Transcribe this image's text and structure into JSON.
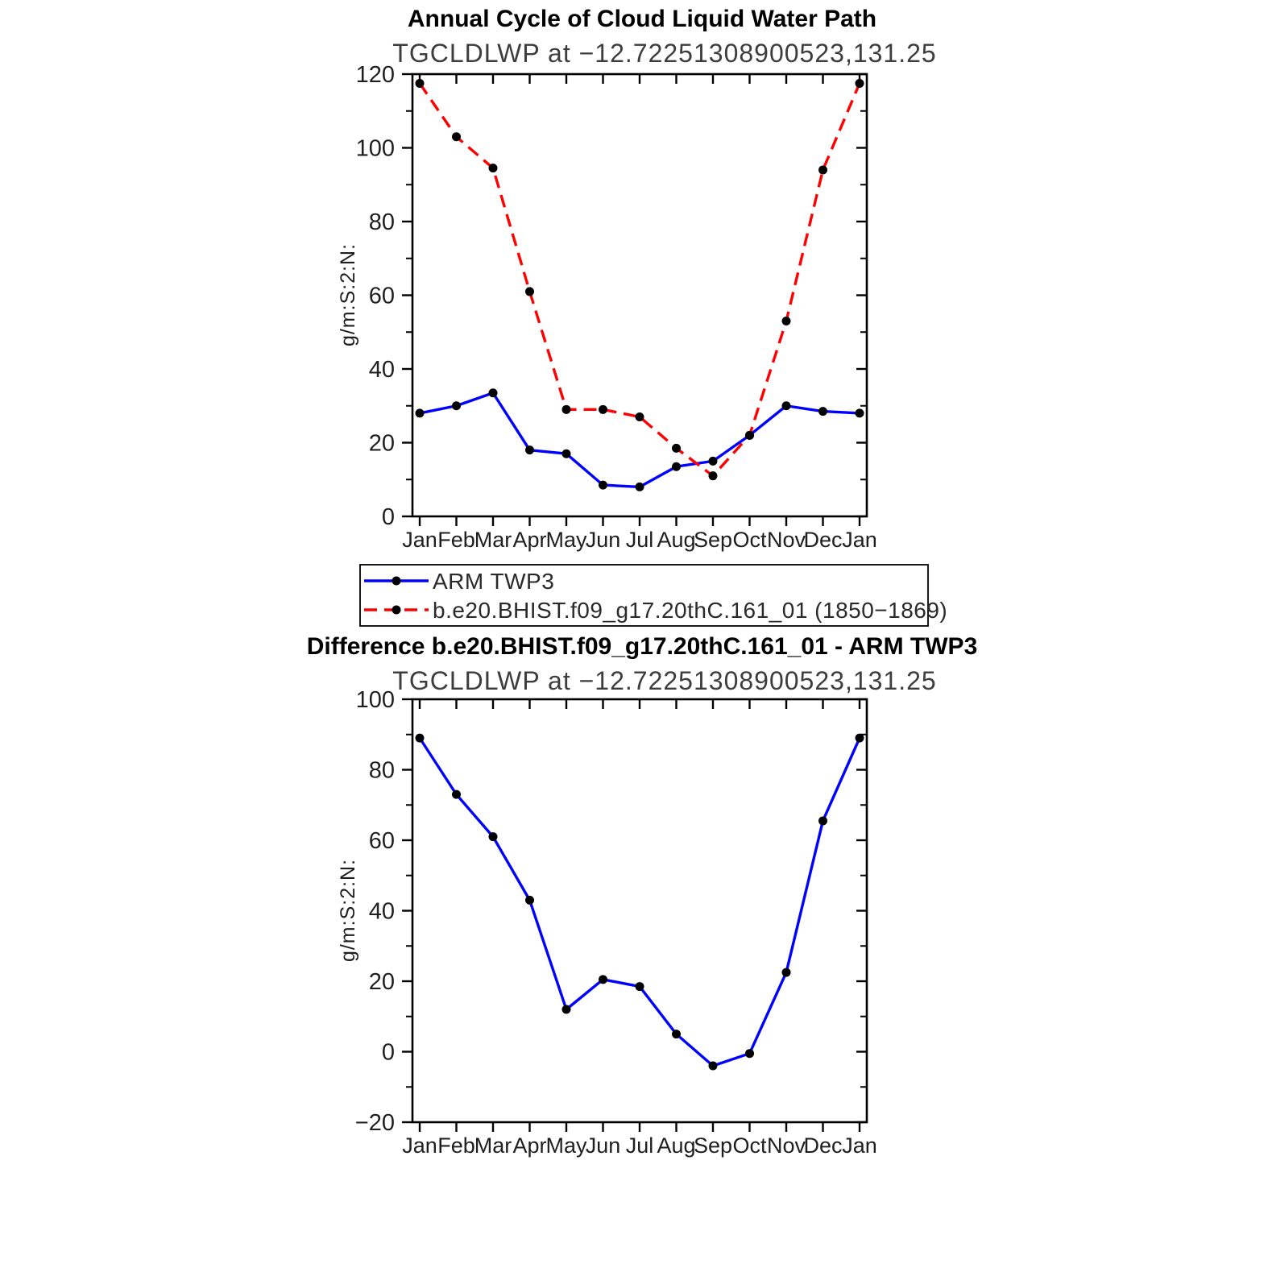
{
  "page": {
    "background": "#ffffff",
    "axis_color": "#000000",
    "marker_color": "#000000"
  },
  "chart_data": [
    {
      "type": "line",
      "title": "Annual Cycle of Cloud Liquid Water Path",
      "subtitle": "TGCLDLWP at −12.72251308900523,131.25",
      "ylabel": "g/m:S:2:N:",
      "xlabel": "",
      "categories": [
        "Jan",
        "Feb",
        "Mar",
        "Apr",
        "May",
        "Jun",
        "Jul",
        "Aug",
        "Sep",
        "Oct",
        "Nov",
        "Dec",
        "Jan"
      ],
      "ylim": [
        0,
        120
      ],
      "ytick_step": 20,
      "grid": false,
      "legend_position": "below",
      "series": [
        {
          "name": "ARM TWP3",
          "color": "#0000ff",
          "dash": "solid",
          "values": [
            28,
            30,
            33.5,
            18,
            17,
            8.5,
            8,
            13.5,
            15,
            22,
            30,
            28.5,
            28
          ]
        },
        {
          "name": "b.e20.BHIST.f09_g17.20thC.161_01 (1850−1869)",
          "color": "#ff0000",
          "dash": "dashed",
          "values": [
            117.5,
            103,
            94.5,
            61,
            29,
            29,
            27,
            18.5,
            11,
            22,
            53,
            94,
            117.5
          ]
        }
      ]
    },
    {
      "type": "line",
      "title": "Difference b.e20.BHIST.f09_g17.20thC.161_01 - ARM TWP3",
      "subtitle": "TGCLDLWP at −12.72251308900523,131.25",
      "ylabel": "g/m:S:2:N:",
      "xlabel": "",
      "categories": [
        "Jan",
        "Feb",
        "Mar",
        "Apr",
        "May",
        "Jun",
        "Jul",
        "Aug",
        "Sep",
        "Oct",
        "Nov",
        "Dec",
        "Jan"
      ],
      "ylim": [
        -20,
        100
      ],
      "ytick_step": 20,
      "grid": false,
      "legend_position": "none",
      "series": [
        {
          "name": "Difference",
          "color": "#0000ff",
          "dash": "solid",
          "values": [
            89,
            73,
            61,
            43,
            12,
            20.5,
            18.5,
            5,
            -4,
            -0.5,
            22.5,
            65.5,
            89
          ]
        }
      ]
    }
  ]
}
